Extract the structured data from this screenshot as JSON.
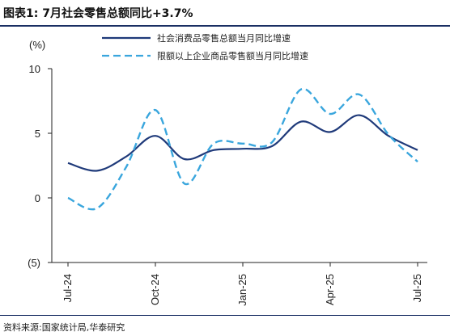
{
  "header": {
    "title": "图表1:  7月社会零售总额同比+3.7%"
  },
  "footer": {
    "source": "资料来源:国家统计局,华泰研究"
  },
  "chart_data": {
    "type": "line",
    "ylabel": "(%)",
    "ylim": [
      -5,
      10
    ],
    "yticks": [
      {
        "value": 10,
        "label": "10"
      },
      {
        "value": 5,
        "label": "5"
      },
      {
        "value": 0,
        "label": "0"
      },
      {
        "value": -5,
        "label": "(5)"
      }
    ],
    "x": [
      "2024-07",
      "2024-08",
      "2024-09",
      "2024-10",
      "2024-11",
      "2024-12",
      "2025-01",
      "2025-02",
      "2025-03",
      "2025-04",
      "2025-05",
      "2025-06",
      "2025-07"
    ],
    "xticks": [
      {
        "x": "2024-07",
        "label": "Jul-24"
      },
      {
        "x": "2024-10",
        "label": "Oct-24"
      },
      {
        "x": "2025-01",
        "label": "Jan-25"
      },
      {
        "x": "2025-04",
        "label": "Apr-25"
      },
      {
        "x": "2025-07",
        "label": "Jul-25"
      }
    ],
    "legend_position": "top",
    "series": [
      {
        "name": "社会消费品零售总额当月同比增速",
        "color": "#1f3a7a",
        "style": "solid",
        "values": [
          2.7,
          2.1,
          3.2,
          4.8,
          3.0,
          3.7,
          3.8,
          4.0,
          5.9,
          5.1,
          6.4,
          4.8,
          3.7
        ]
      },
      {
        "name": "限额以上企业商品零售额当月同比增速",
        "color": "#3aa6dd",
        "style": "dashed",
        "values": [
          0.0,
          -0.8,
          2.4,
          6.8,
          1.1,
          4.2,
          4.2,
          4.3,
          8.4,
          6.5,
          8.0,
          4.9,
          2.8
        ]
      }
    ]
  }
}
